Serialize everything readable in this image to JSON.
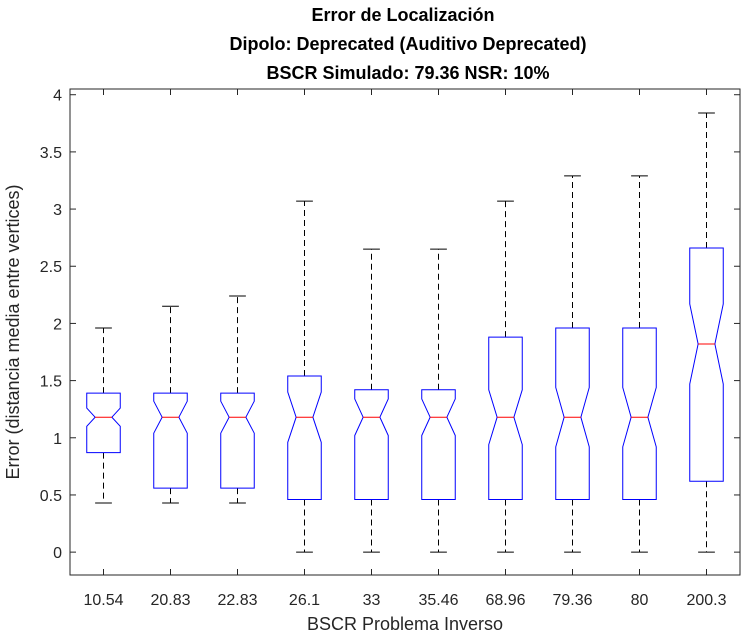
{
  "chart_data": {
    "type": "boxplot",
    "notched": true,
    "title_lines": [
      "Error de Localización",
      "Dipolo: Deprecated (Auditivo Deprecated)",
      "BSCR Simulado: 79.36 NSR: 10%"
    ],
    "xlabel": "BSCR Problema Inverso",
    "ylabel": "Error (distancia media entre vertices)",
    "ylim": [
      -0.2,
      4.05
    ],
    "yticks": [
      0,
      0.5,
      1,
      1.5,
      2,
      2.5,
      3,
      3.5,
      4
    ],
    "ytick_labels": [
      "0",
      "0.5",
      "1",
      "1.5",
      "2",
      "2.5",
      "3",
      "3.5",
      "4"
    ],
    "categories": [
      "10.54",
      "20.83",
      "22.83",
      "26.1",
      "33",
      "35.46",
      "68.96",
      "79.36",
      "80",
      "200.3"
    ],
    "boxes": [
      {
        "whisker_low": 0.43,
        "q1": 0.87,
        "median": 1.18,
        "q3": 1.39,
        "whisker_high": 1.96,
        "notch_low": 1.1,
        "notch_high": 1.26
      },
      {
        "whisker_low": 0.43,
        "q1": 0.56,
        "median": 1.18,
        "q3": 1.39,
        "whisker_high": 2.15,
        "notch_low": 1.04,
        "notch_high": 1.32
      },
      {
        "whisker_low": 0.43,
        "q1": 0.56,
        "median": 1.18,
        "q3": 1.39,
        "whisker_high": 2.24,
        "notch_low": 1.04,
        "notch_high": 1.32
      },
      {
        "whisker_low": 0.0,
        "q1": 0.46,
        "median": 1.18,
        "q3": 1.54,
        "whisker_high": 3.07,
        "notch_low": 0.96,
        "notch_high": 1.4
      },
      {
        "whisker_low": 0.0,
        "q1": 0.46,
        "median": 1.18,
        "q3": 1.42,
        "whisker_high": 2.65,
        "notch_low": 1.02,
        "notch_high": 1.34
      },
      {
        "whisker_low": 0.0,
        "q1": 0.46,
        "median": 1.18,
        "q3": 1.42,
        "whisker_high": 2.65,
        "notch_low": 1.02,
        "notch_high": 1.34
      },
      {
        "whisker_low": 0.0,
        "q1": 0.46,
        "median": 1.18,
        "q3": 1.88,
        "whisker_high": 3.07,
        "notch_low": 0.94,
        "notch_high": 1.42
      },
      {
        "whisker_low": 0.0,
        "q1": 0.46,
        "median": 1.18,
        "q3": 1.96,
        "whisker_high": 3.29,
        "notch_low": 0.92,
        "notch_high": 1.44
      },
      {
        "whisker_low": 0.0,
        "q1": 0.46,
        "median": 1.18,
        "q3": 1.96,
        "whisker_high": 3.29,
        "notch_low": 0.92,
        "notch_high": 1.44
      },
      {
        "whisker_low": 0.0,
        "q1": 0.62,
        "median": 1.82,
        "q3": 2.66,
        "whisker_high": 3.84,
        "notch_low": 1.47,
        "notch_high": 2.17
      }
    ],
    "box_color": "#0000ff",
    "median_color": "#ff0000",
    "whisker_color": "#000000",
    "grid": false
  }
}
